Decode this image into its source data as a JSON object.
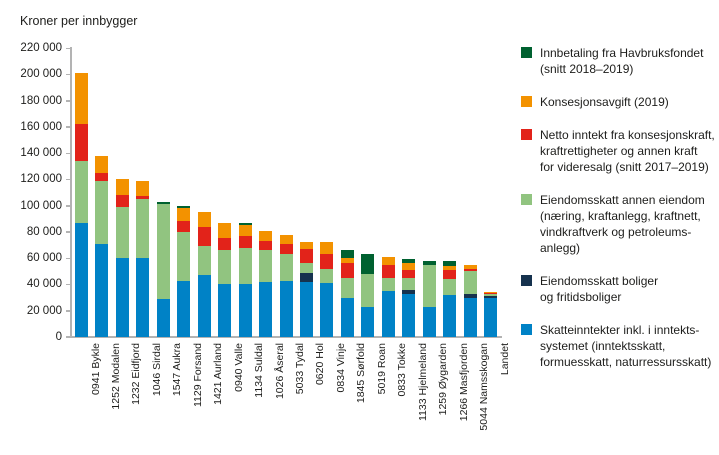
{
  "title": "Kroner per innbygger",
  "colors": {
    "blue": "#0082C6",
    "black": "#16324E",
    "light_green": "#91C480",
    "red": "#E2231A",
    "orange": "#F39200",
    "dark_green": "#006130",
    "axis": "#B3B3B3",
    "text": "#1D1D1B"
  },
  "chart_data": {
    "type": "bar",
    "stacked": true,
    "title": "Kroner per innbygger",
    "xlabel": "",
    "ylabel": "Kroner per innbygger",
    "ylim": [
      0,
      220000
    ],
    "ytick_interval": 20000,
    "ytick_labels": [
      "0",
      "20 000",
      "40 000",
      "60 000",
      "80 000",
      "100 000",
      "120 000",
      "140 000",
      "160 000",
      "180 000",
      "200 000",
      "220 000"
    ],
    "grid": false,
    "legend_position": "right",
    "stack_order": "bottom_to_top",
    "categories": [
      "0941 Bykle",
      "1252 Modalen",
      "1232 Eidfjord",
      "1046 Sirdal",
      "1547 Aukra",
      "1129 Forsand",
      "1421 Aurland",
      "0940 Valle",
      "1134 Suldal",
      "1026 Åseral",
      "5033 Tydal",
      "0620 Hol",
      "0834 Vinje",
      "1845 Sørfold",
      "5019 Roan",
      "0833 Tokke",
      "1133 Hjelmeland",
      "1259 Øygarden",
      "1266 Masfjorden",
      "5044 Namsskogan",
      "Landet"
    ],
    "series": [
      {
        "name": "Skatteinntekter inkl. i inntektssystemet (inntektsskatt, formuesskatt, naturressursskatt)",
        "color_key": "blue",
        "values": [
          87000,
          71000,
          60000,
          60000,
          29000,
          43000,
          47000,
          40000,
          40000,
          42000,
          43000,
          42000,
          41000,
          30000,
          23000,
          35000,
          33000,
          23000,
          32000,
          30000,
          30000
        ]
      },
      {
        "name": "Eiendomsskatt boliger og fritidsboliger",
        "color_key": "black",
        "values": [
          0,
          0,
          0,
          0,
          0,
          0,
          0,
          0,
          0,
          0,
          0,
          7000,
          0,
          0,
          0,
          0,
          3000,
          0,
          0,
          3000,
          1500
        ]
      },
      {
        "name": "Eiendomsskatt annen eiendom (næring, kraftanlegg, kraftnett, vindkraftverk og petroleumsanlegg)",
        "color_key": "light_green",
        "values": [
          47000,
          48000,
          39000,
          45000,
          72000,
          37000,
          22000,
          26000,
          28000,
          24000,
          20000,
          7000,
          11000,
          15000,
          25000,
          10000,
          9000,
          32000,
          12000,
          17000,
          1700
        ]
      },
      {
        "name": "Netto inntekt fra konsesjonskraft, kraftrettigheter og annen kraft for videresalg (snitt 2017–2019)",
        "color_key": "red",
        "values": [
          28000,
          6000,
          9000,
          2000,
          0,
          8000,
          15000,
          9000,
          9000,
          7000,
          8000,
          11000,
          11000,
          11000,
          0,
          10000,
          6000,
          0,
          7000,
          2000,
          300
        ]
      },
      {
        "name": "Konsesjonsavgift (2019)",
        "color_key": "orange",
        "values": [
          39000,
          13000,
          12000,
          12000,
          0,
          10000,
          11000,
          12000,
          8000,
          8000,
          7000,
          5000,
          9000,
          4000,
          0,
          6000,
          5000,
          0,
          3000,
          3000,
          500
        ]
      },
      {
        "name": "Innbetaling fra Havbruksfondet (snitt 2018–2019)",
        "color_key": "dark_green",
        "values": [
          0,
          0,
          0,
          0,
          2000,
          2000,
          0,
          0,
          2000,
          0,
          0,
          0,
          0,
          6000,
          15000,
          0,
          3000,
          3000,
          4000,
          0,
          0
        ]
      }
    ]
  },
  "legend": {
    "items": [
      {
        "label": "Innbetaling fra Havbruksfondet\n(snitt 2018–2019)",
        "color": "#006130"
      },
      {
        "label": "Konsesjonsavgift (2019)",
        "color": "#F39200"
      },
      {
        "label": "Netto inntekt fra konsesjonskraft,\nkraftrettigheter og annen kraft\nfor videresalg (snitt 2017–2019)",
        "color": "#E2231A"
      },
      {
        "label": "Eiendomsskatt annen eiendom\n(næring, kraftanlegg, kraftnett,\nvindkraftverk og petroleums-\nanlegg)",
        "color": "#91C480"
      },
      {
        "label": "Eiendomsskatt boliger\nog fritidsboliger",
        "color": "#16324E"
      },
      {
        "label": "Skatteinntekter inkl. i inntekts-\nsystemet (inntektsskatt,\nformuesskatt, naturressursskatt)",
        "color": "#0082C6"
      }
    ]
  }
}
